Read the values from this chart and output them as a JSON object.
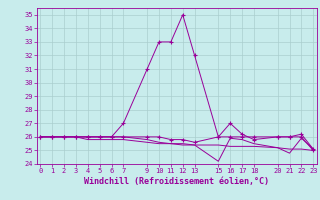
{
  "xlabel": "Windchill (Refroidissement éolien,°C)",
  "bg_color": "#c8ecec",
  "line_color": "#990099",
  "grid_color": "#aacece",
  "xticks": [
    0,
    1,
    2,
    3,
    4,
    5,
    6,
    7,
    9,
    10,
    11,
    12,
    13,
    15,
    16,
    17,
    18,
    20,
    21,
    22,
    23
  ],
  "yticks": [
    24,
    25,
    26,
    27,
    28,
    29,
    30,
    31,
    32,
    33,
    34,
    35
  ],
  "xlim": [
    -0.3,
    23.3
  ],
  "ylim": [
    24,
    35.5
  ],
  "series": [
    {
      "x": [
        0,
        1,
        2,
        3,
        4,
        5,
        6,
        7,
        9,
        10,
        11,
        12,
        13,
        15,
        16,
        17,
        18,
        20,
        21,
        22,
        23
      ],
      "y": [
        26,
        26,
        26,
        26,
        26,
        26,
        26,
        27,
        31,
        33,
        33,
        35,
        32,
        26,
        26,
        26,
        26,
        26,
        26,
        26,
        25
      ],
      "marker": "+"
    },
    {
      "x": [
        0,
        1,
        2,
        3,
        4,
        5,
        6,
        7,
        9,
        10,
        11,
        12,
        13,
        15,
        16,
        17,
        18,
        20,
        21,
        22,
        23
      ],
      "y": [
        26,
        26,
        26,
        26,
        25.8,
        25.8,
        25.8,
        25.8,
        25.6,
        25.5,
        25.5,
        25.4,
        25.4,
        24.2,
        25.9,
        25.8,
        25.5,
        25.2,
        24.8,
        25.9,
        25.1
      ],
      "marker": null
    },
    {
      "x": [
        0,
        1,
        2,
        3,
        4,
        5,
        6,
        7,
        9,
        10,
        11,
        12,
        13,
        15,
        16,
        17,
        18,
        20,
        21,
        22,
        23
      ],
      "y": [
        26,
        26,
        26,
        26,
        26,
        26,
        26,
        26,
        26,
        26,
        25.8,
        25.8,
        25.6,
        26,
        27,
        26.2,
        25.8,
        26,
        26,
        26.2,
        25.1
      ],
      "marker": "+"
    },
    {
      "x": [
        0,
        1,
        2,
        3,
        4,
        5,
        6,
        7,
        9,
        10,
        11,
        12,
        13,
        15,
        16,
        17,
        18,
        20,
        21,
        22,
        23
      ],
      "y": [
        26,
        26,
        26,
        26,
        26,
        26,
        26,
        26,
        25.8,
        25.6,
        25.5,
        25.5,
        25.4,
        25.4,
        25.3,
        25.3,
        25.3,
        25.2,
        25.1,
        25.1,
        25.0
      ],
      "marker": null
    }
  ]
}
